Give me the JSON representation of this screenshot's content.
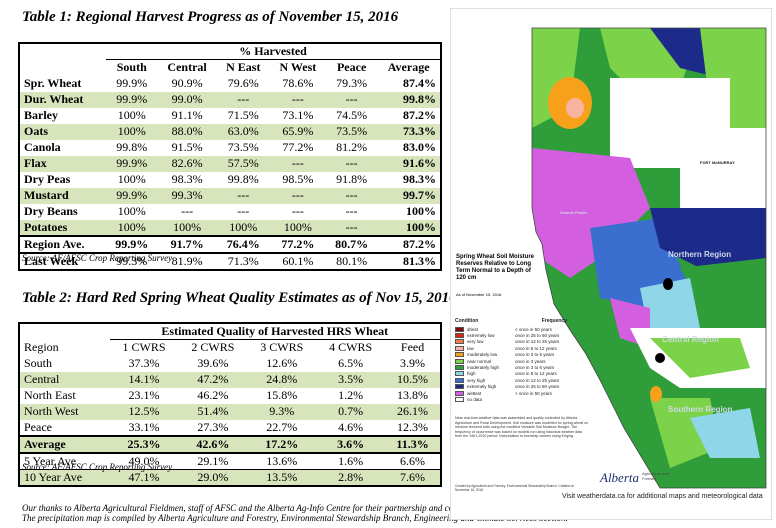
{
  "table1": {
    "title": "Table 1: Regional Harvest Progress as of November 15, 2016",
    "group_header": "% Harvested",
    "columns": [
      "South",
      "Central",
      "N East",
      "N West",
      "Peace",
      "Average"
    ],
    "rows": [
      {
        "crop": "Spr. Wheat",
        "values": [
          "99.9%",
          "90.9%",
          "79.6%",
          "78.6%",
          "79.3%"
        ],
        "avg": "87.4%",
        "shade": false
      },
      {
        "crop": "Dur. Wheat",
        "values": [
          "99.9%",
          "99.0%",
          "---",
          "---",
          "---"
        ],
        "avg": "99.8%",
        "shade": true
      },
      {
        "crop": "Barley",
        "values": [
          "100%",
          "91.1%",
          "71.5%",
          "73.1%",
          "74.5%"
        ],
        "avg": "87.2%",
        "shade": false
      },
      {
        "crop": "Oats",
        "values": [
          "100%",
          "88.0%",
          "63.0%",
          "65.9%",
          "73.5%"
        ],
        "avg": "73.3%",
        "shade": true
      },
      {
        "crop": "Canola",
        "values": [
          "99.8%",
          "91.5%",
          "73.5%",
          "77.2%",
          "81.2%"
        ],
        "avg": "83.0%",
        "shade": false
      },
      {
        "crop": "Flax",
        "values": [
          "99.9%",
          "82.6%",
          "57.5%",
          "---",
          "---"
        ],
        "avg": "91.6%",
        "shade": true
      },
      {
        "crop": "Dry Peas",
        "values": [
          "100%",
          "98.3%",
          "99.8%",
          "98.5%",
          "91.8%"
        ],
        "avg": "98.3%",
        "shade": false
      },
      {
        "crop": "Mustard",
        "values": [
          "99.9%",
          "99.3%",
          "---",
          "---",
          "---"
        ],
        "avg": "99.7%",
        "shade": true
      },
      {
        "crop": "Dry Beans",
        "values": [
          "100%",
          "---",
          "---",
          "---",
          "---"
        ],
        "avg": "100%",
        "shade": false
      },
      {
        "crop": "Potatoes",
        "values": [
          "100%",
          "100%",
          "100%",
          "100%",
          "---"
        ],
        "avg": "100%",
        "shade": true
      }
    ],
    "region_ave": {
      "crop": "Region Ave.",
      "values": [
        "99.9%",
        "91.7%",
        "76.4%",
        "77.2%",
        "80.7%"
      ],
      "avg": "87.2%"
    },
    "last_week": {
      "crop": "Last Week",
      "values": [
        "99.3%",
        "81.9%",
        "71.3%",
        "60.1%",
        "80.1%"
      ],
      "avg": "81.3%"
    },
    "source": "Source: AF/AFSC Crop Reporting Survey"
  },
  "table2": {
    "title": "Table 2: Hard Red Spring Wheat Quality Estimates as of Nov 15, 2016",
    "group_header": "Estimated Quality of Harvested HRS Wheat",
    "region_label": "Region",
    "columns": [
      "1 CWRS",
      "2 CWRS",
      "3 CWRS",
      "4 CWRS",
      "Feed"
    ],
    "rows": [
      {
        "region": "South",
        "values": [
          "37.3%",
          "39.6%",
          "12.6%",
          "6.5%",
          "3.9%"
        ],
        "shade": false
      },
      {
        "region": "Central",
        "values": [
          "14.1%",
          "47.2%",
          "24.8%",
          "3.5%",
          "10.5%"
        ],
        "shade": true
      },
      {
        "region": "North East",
        "values": [
          "23.1%",
          "46.2%",
          "15.8%",
          "1.2%",
          "13.8%"
        ],
        "shade": false
      },
      {
        "region": "North West",
        "values": [
          "12.5%",
          "51.4%",
          "9.3%",
          "0.7%",
          "26.1%"
        ],
        "shade": true
      },
      {
        "region": "Peace",
        "values": [
          "33.1%",
          "27.3%",
          "22.7%",
          "4.6%",
          "12.3%"
        ],
        "shade": false
      }
    ],
    "average": {
      "region": "Average",
      "values": [
        "25.3%",
        "42.6%",
        "17.2%",
        "3.6%",
        "11.3%"
      ]
    },
    "five_year": {
      "region": "5 Year Ave",
      "values": [
        "49.0%",
        "29.1%",
        "13.6%",
        "1.6%",
        "6.6%"
      ]
    },
    "ten_year": {
      "region": "10 Year Ave",
      "values": [
        "47.1%",
        "29.0%",
        "13.5%",
        "2.8%",
        "7.6%"
      ]
    },
    "source": "Source: AF/AFSC Crop Reporting Survey"
  },
  "footnotes": [
    "Our thanks to Alberta Agricultural Fieldmen, staff of AFSC and the Alberta Ag-Info Centre for their partnership and contribution to the Alberta Crop Reporting Program.",
    "The precipitation map is compiled by Alberta Agriculture and Forestry, Environmental Stewardship Branch, Engineering and Climate Services Section."
  ],
  "map": {
    "legend_title": "Spring Wheat Soil Moisture Reserves Relative to Long Term Normal to a Depth of 120 cm",
    "date": "As of November 15, 2016",
    "condition_header": "Condition",
    "frequency_header": "Frequency",
    "legend": [
      {
        "condition": "driest",
        "frequency": "< once in 50 years",
        "color": "#7a1010"
      },
      {
        "condition": "extremely low",
        "frequency": "once in 25 to 50 years",
        "color": "#d9261c"
      },
      {
        "condition": "very low",
        "frequency": "once in 12 to 25 years",
        "color": "#f47c4a"
      },
      {
        "condition": "low",
        "frequency": "once in 6 to 12 years",
        "color": "#f9b3a0"
      },
      {
        "condition": "moderately low",
        "frequency": "once in 3 to 6 years",
        "color": "#f7a11a"
      },
      {
        "condition": "near normal",
        "frequency": "once in 3 years",
        "color": "#7cd34a"
      },
      {
        "condition": "moderately high",
        "frequency": "once in 3 to 6 years",
        "color": "#2f9e3a"
      },
      {
        "condition": "high",
        "frequency": "once in 6 to 12 years",
        "color": "#8fd6e8"
      },
      {
        "condition": "very high",
        "frequency": "once in 12 to 25 years",
        "color": "#3a6fd0"
      },
      {
        "condition": "extremely high",
        "frequency": "once in 25 to 50 years",
        "color": "#1c2a8a"
      },
      {
        "condition": "wettest",
        "frequency": "> once in 50 years",
        "color": "#d45ee0"
      },
      {
        "condition": "no data",
        "frequency": "",
        "color": "#ffffff"
      }
    ],
    "note": "Near real-time weather data was assembled and quality controlled by Alberta Agriculture and Rural Development. Soil moisture was modelled for spring wheat on medium textured soils using the modified Versatile Soil Moisture Budget. The frequency of occurrence was based on models run using historical weather data from the 1961-2010 period. Interpolation to township centres using Kriging.",
    "copyright": "Created by Agriculture and Forestry, Environmental Stewardship Branch. Created on November 16, 2016",
    "logo": "Alberta",
    "agency": "Agriculture and Forestry",
    "visit": "Visit weatherdata.ca for additional maps and meteorological data",
    "place_labels": [
      "FORT McMURRAY",
      "Grande Prairie",
      "Northern Region",
      "Central Region",
      "Southern Region"
    ]
  }
}
